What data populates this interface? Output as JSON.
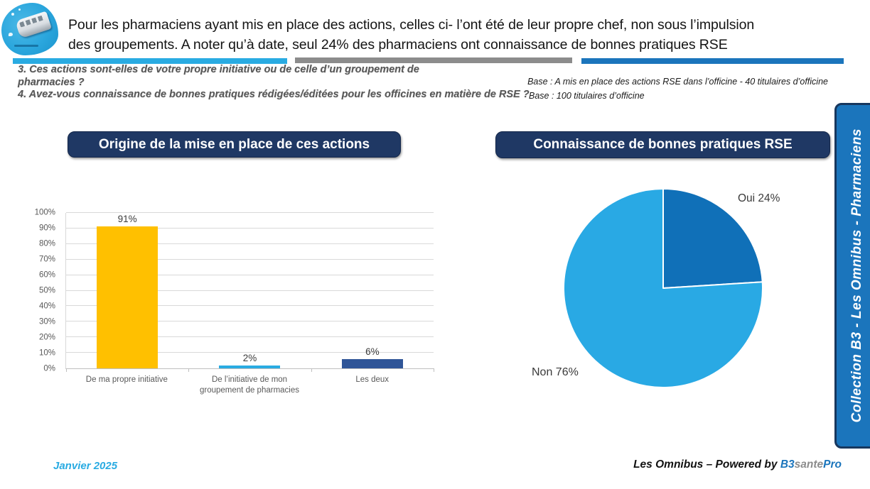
{
  "header": {
    "title": "Pour les pharmaciens ayant mis en place des actions, celles ci- l’ont été de leur propre chef, non sous l’impulsion\ndes groupements. A noter qu’à date, seul 24% des pharmaciens ont connaissance de bonnes pratiques RSE",
    "logo": "b3-blob-logo"
  },
  "questions": {
    "q3": "3. Ces actions sont-elles de votre propre initiative ou de celle d’un groupement de\npharmacies ?",
    "q4": "4. Avez-vous connaissance de bonnes pratiques rédigées/éditées pour les officines en matière de RSE ?"
  },
  "bases": {
    "base1": "Base : A mis en place des actions RSE dans l’officine - 40 titulaires d’officine",
    "base2": "Base : 100 titulaires d’officine"
  },
  "chart_data": [
    {
      "type": "bar",
      "title": "Origine de la mise en place de ces actions",
      "categories": [
        "De ma propre initiative",
        "De l’initiative de mon groupement de pharmacies",
        "Les deux"
      ],
      "values": [
        91,
        2,
        6
      ],
      "value_labels": [
        "91%",
        "2%",
        "6%"
      ],
      "bar_colors": [
        "#FFC000",
        "#29ABE2",
        "#2F5597"
      ],
      "xlabel": "",
      "ylabel": "",
      "ylim": [
        0,
        100
      ],
      "ytick_step": 10,
      "ytick_suffix": "%",
      "grid": true,
      "legend": "none"
    },
    {
      "type": "pie",
      "title": "Connaissance de bonnes pratiques RSE",
      "slices": [
        {
          "label": "Oui 24%",
          "name": "Oui",
          "value": 24,
          "color": "#1070B8"
        },
        {
          "label": "Non 76%",
          "name": "Non",
          "value": 76,
          "color": "#29A9E4"
        }
      ],
      "start_angle_deg": 0,
      "direction": "clockwise",
      "legend": "outside-labels"
    }
  ],
  "sidebar": {
    "label": "Collection B3 - Les Omnibus - Pharmaciens"
  },
  "footer": {
    "date": "Janvier 2025",
    "credit_prefix": "Les Omnibus – Powered by ",
    "brand": [
      {
        "text": "B3",
        "color": "#1B75BC"
      },
      {
        "text": "sante",
        "color": "#8C8C8C"
      },
      {
        "text": "Pro",
        "color": "#1B75BC"
      }
    ]
  },
  "colors": {
    "cyan": "#29ABE2",
    "gray": "#8C8C8C",
    "blue": "#1B75BC",
    "navy": "#1F3864",
    "navy_dark": "#17375E"
  }
}
